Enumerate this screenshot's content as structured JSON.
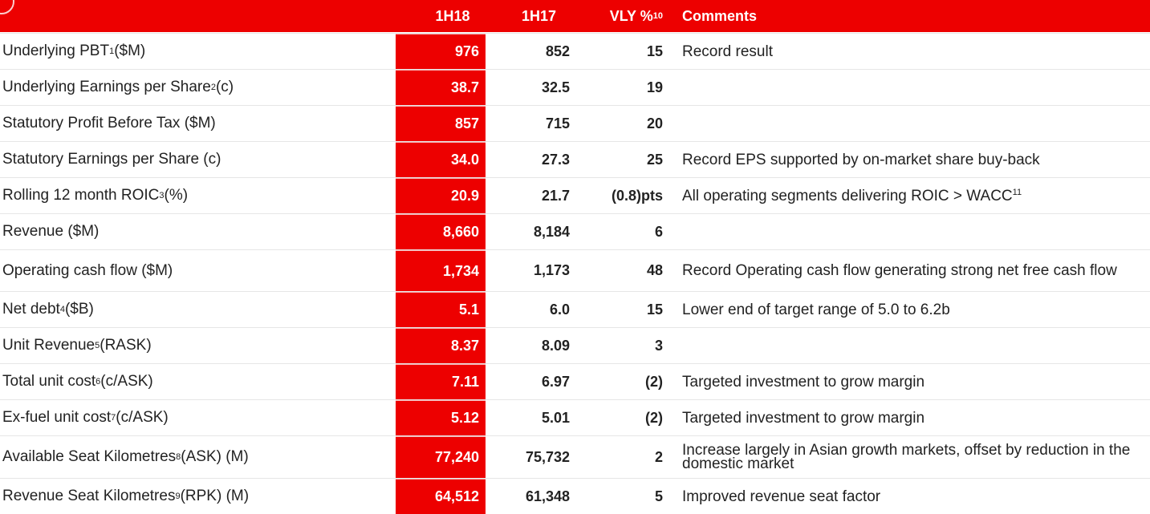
{
  "header": {
    "col_1h18": "1H18",
    "col_1h17": "1H17",
    "col_vly": "VLY %",
    "col_vly_sup": "10",
    "col_comments": "Comments"
  },
  "rows": [
    {
      "label": "Underlying PBT",
      "sup": "1",
      "unit": " ($M)",
      "h18": "976",
      "h17": "852",
      "vly": "15",
      "comment": "Record result"
    },
    {
      "label": "Underlying Earnings per Share",
      "sup": "2",
      "unit": " (c)",
      "h18": "38.7",
      "h17": "32.5",
      "vly": "19",
      "comment": ""
    },
    {
      "label": "Statutory Profit Before Tax ($M)",
      "sup": "",
      "unit": "",
      "h18": "857",
      "h17": "715",
      "vly": "20",
      "comment": ""
    },
    {
      "label": "Statutory Earnings per Share (c)",
      "sup": "",
      "unit": "",
      "h18": "34.0",
      "h17": "27.3",
      "vly": "25",
      "comment": "Record EPS supported by on-market share buy-back"
    },
    {
      "label": "Rolling 12 month ROIC",
      "sup": "3",
      "unit": " (%)",
      "h18": "20.9",
      "h17": "21.7",
      "vly": "(0.8)pts",
      "comment": "All operating segments delivering ROIC > WACC",
      "comment_sup": "11"
    },
    {
      "label": "Revenue ($M)",
      "sup": "",
      "unit": "",
      "h18": "8,660",
      "h17": "8,184",
      "vly": "6",
      "comment": ""
    },
    {
      "label": "Operating cash flow ($M)",
      "sup": "",
      "unit": "",
      "h18": "1,734",
      "h17": "1,173",
      "vly": "48",
      "comment": "Record Operating cash flow generating strong net free cash flow"
    },
    {
      "label": "Net debt",
      "sup": "4",
      "unit": " ($B)",
      "h18": "5.1",
      "h17": "6.0",
      "vly": "15",
      "comment": "Lower end of target range of 5.0 to 6.2b"
    },
    {
      "label": "Unit Revenue",
      "sup": "5",
      "unit": " (RASK)",
      "h18": "8.37",
      "h17": "8.09",
      "vly": "3",
      "comment": ""
    },
    {
      "label": "Total unit cost",
      "sup": "6",
      "unit": " (c/ASK)",
      "h18": "7.11",
      "h17": "6.97",
      "vly": "(2)",
      "comment": "Targeted investment to grow margin"
    },
    {
      "label": "Ex-fuel unit cost",
      "sup": "7",
      "unit": " (c/ASK)",
      "h18": "5.12",
      "h17": "5.01",
      "vly": "(2)",
      "comment": "Targeted investment to grow margin"
    },
    {
      "label": "Available Seat Kilometres",
      "sup": "8",
      "unit": " (ASK) (M)",
      "h18": "77,240",
      "h17": "75,732",
      "vly": "2",
      "comment": "Increase largely in Asian growth markets, offset by reduction in the domestic market"
    },
    {
      "label": "Revenue Seat Kilometres",
      "sup": "9",
      "unit": " (RPK) (M)",
      "h18": "64,512",
      "h17": "61,348",
      "vly": "5",
      "comment": "Improved revenue seat factor"
    }
  ],
  "colors": {
    "accent": "#ed0000"
  }
}
